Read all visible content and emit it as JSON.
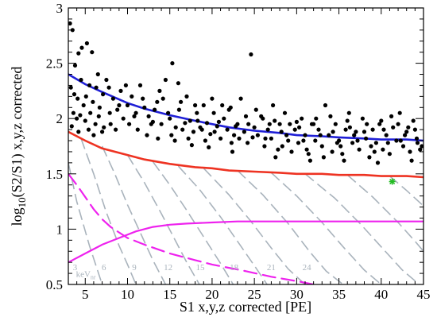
{
  "chart_data": {
    "type": "scatter",
    "title": "",
    "xlabel": "S1 x,y,z corrected [PE]",
    "ylabel": {
      "prefix": "log",
      "sub": "10",
      "rest": "(S2/S1) x,y,z corrected"
    },
    "xlim": [
      3,
      45
    ],
    "ylim": [
      0.5,
      3
    ],
    "xticks": [
      5,
      10,
      15,
      20,
      25,
      30,
      35,
      40,
      45
    ],
    "yticks": [
      0.5,
      1,
      1.5,
      2,
      2.5,
      3
    ],
    "ytick_labels": [
      "0.5",
      "1",
      "1.5",
      "2",
      "2.5",
      "3"
    ],
    "grid": false,
    "colors": {
      "points": "#000000",
      "er_band": "#1f1fd6",
      "nr_band": "#ee3322",
      "acceptance": "#ee22ee",
      "contours": "#a9b3bc",
      "candidate": "#22bb22"
    },
    "series": [
      {
        "kind": "line",
        "color_key": "er_band",
        "x": [
          3,
          5,
          7,
          10,
          12,
          15,
          18,
          20,
          22,
          25,
          28,
          30,
          33,
          35,
          38,
          40,
          43,
          45
        ],
        "y": [
          2.4,
          2.31,
          2.24,
          2.14,
          2.09,
          2.03,
          1.98,
          1.95,
          1.92,
          1.89,
          1.87,
          1.85,
          1.84,
          1.83,
          1.82,
          1.81,
          1.81,
          1.8
        ]
      },
      {
        "kind": "line",
        "color_key": "nr_band",
        "x": [
          3,
          5,
          7,
          10,
          12,
          15,
          18,
          20,
          22,
          25,
          28,
          30,
          33,
          35,
          38,
          40,
          43,
          45
        ],
        "y": [
          1.88,
          1.8,
          1.73,
          1.67,
          1.63,
          1.59,
          1.56,
          1.55,
          1.53,
          1.52,
          1.51,
          1.5,
          1.5,
          1.49,
          1.49,
          1.48,
          1.48,
          1.47
        ]
      },
      {
        "kind": "line",
        "color_key": "acceptance",
        "style": "solid",
        "x": [
          3,
          5,
          7,
          9,
          11,
          13,
          15,
          17,
          20,
          23,
          26,
          30,
          35,
          40,
          45
        ],
        "y": [
          0.7,
          0.78,
          0.86,
          0.92,
          0.98,
          1.02,
          1.04,
          1.05,
          1.06,
          1.07,
          1.07,
          1.07,
          1.07,
          1.07,
          1.07
        ]
      },
      {
        "kind": "line",
        "color_key": "acceptance",
        "style": "dashed",
        "x": [
          3,
          4,
          5,
          6,
          7,
          8,
          10,
          12,
          15,
          18,
          20,
          24,
          27,
          30,
          32
        ],
        "y": [
          1.5,
          1.4,
          1.29,
          1.18,
          1.09,
          1.02,
          0.92,
          0.86,
          0.78,
          0.72,
          0.68,
          0.62,
          0.57,
          0.53,
          0.5
        ]
      }
    ],
    "contours": {
      "label_unit": "keV",
      "label_unit_sub": "nr",
      "labels": [
        {
          "text": "3",
          "x": 3.8
        },
        {
          "text": "6",
          "x": 7.2
        },
        {
          "text": "9",
          "x": 10.8
        },
        {
          "text": "12",
          "x": 14.8
        },
        {
          "text": "15",
          "x": 18.6
        },
        {
          "text": "18",
          "x": 22.6
        },
        {
          "text": "21",
          "x": 27.0
        },
        {
          "text": "24",
          "x": 31.2
        }
      ],
      "lines": [
        {
          "x": [
            3.0,
            4.0,
            5.5,
            7.0
          ],
          "y": [
            1.6,
            1.25,
            0.85,
            0.5
          ]
        },
        {
          "x": [
            4.5,
            6.0,
            7.5,
            9.0,
            10.0,
            11.0
          ],
          "y": [
            1.82,
            1.5,
            1.15,
            0.85,
            0.68,
            0.5
          ]
        },
        {
          "x": [
            7.0,
            8.5,
            10.0,
            11.5,
            13.0,
            14.5
          ],
          "y": [
            1.75,
            1.5,
            1.22,
            0.97,
            0.72,
            0.5
          ]
        },
        {
          "x": [
            10.0,
            12.0,
            14.0,
            15.5,
            17.0,
            18.5
          ],
          "y": [
            1.67,
            1.42,
            1.14,
            0.92,
            0.7,
            0.5
          ]
        },
        {
          "x": [
            13.0,
            15.0,
            17.0,
            19.0,
            21.0,
            22.5
          ],
          "y": [
            1.61,
            1.4,
            1.17,
            0.93,
            0.69,
            0.5
          ]
        },
        {
          "x": [
            16.0,
            18.5,
            21.0,
            23.0,
            25.0,
            26.5
          ],
          "y": [
            1.57,
            1.36,
            1.11,
            0.89,
            0.67,
            0.5
          ]
        },
        {
          "x": [
            19.0,
            22.0,
            24.5,
            27.0,
            29.0,
            31.0
          ],
          "y": [
            1.55,
            1.31,
            1.08,
            0.83,
            0.64,
            0.5
          ]
        },
        {
          "x": [
            23.0,
            26.0,
            29.0,
            31.5,
            33.5,
            35.5
          ],
          "y": [
            1.53,
            1.31,
            1.05,
            0.8,
            0.62,
            0.5
          ]
        },
        {
          "x": [
            27.0,
            30.0,
            33.0,
            35.5,
            38.0,
            40.0
          ],
          "y": [
            1.51,
            1.3,
            1.06,
            0.84,
            0.63,
            0.5
          ]
        },
        {
          "x": [
            31.0,
            34.5,
            37.5,
            40.0,
            42.5,
            44.5
          ],
          "y": [
            1.5,
            1.28,
            1.05,
            0.84,
            0.63,
            0.5
          ]
        },
        {
          "x": [
            36.0,
            39.0,
            42.0,
            44.0,
            45.0
          ],
          "y": [
            1.49,
            1.29,
            1.06,
            0.89,
            0.8
          ]
        },
        {
          "x": [
            41.0,
            43.0,
            45.0
          ],
          "y": [
            1.48,
            1.35,
            1.21
          ]
        }
      ]
    },
    "candidate": {
      "x": 41.3,
      "y": 1.43,
      "marker": "star"
    },
    "points": [
      [
        3.2,
        2.86
      ],
      [
        3.5,
        2.8
      ],
      [
        3.8,
        2.48
      ],
      [
        4.2,
        2.59
      ],
      [
        4.6,
        2.64
      ],
      [
        5.2,
        2.68
      ],
      [
        5.8,
        2.6
      ],
      [
        3.3,
        2.28
      ],
      [
        3.7,
        2.22
      ],
      [
        4.1,
        2.18
      ],
      [
        4.5,
        2.35
      ],
      [
        4.8,
        2.12
      ],
      [
        5.1,
        2.2
      ],
      [
        5.5,
        2.3
      ],
      [
        5.9,
        2.15
      ],
      [
        6.3,
        2.28
      ],
      [
        6.7,
        2.1
      ],
      [
        7.1,
        2.22
      ],
      [
        7.5,
        2.35
      ],
      [
        7.9,
        2.05
      ],
      [
        8.3,
        2.18
      ],
      [
        8.8,
        2.08
      ],
      [
        9.2,
        2.25
      ],
      [
        3.6,
        2.05
      ],
      [
        4.0,
        2.0
      ],
      [
        4.4,
        2.03
      ],
      [
        5.0,
        1.98
      ],
      [
        5.6,
        2.05
      ],
      [
        6.2,
        1.95
      ],
      [
        6.6,
        2.02
      ],
      [
        7.2,
        1.92
      ],
      [
        3.4,
        1.93
      ],
      [
        4.2,
        1.88
      ],
      [
        5.4,
        1.9
      ],
      [
        6.0,
        1.85
      ],
      [
        7.0,
        1.88
      ],
      [
        8.0,
        1.95
      ],
      [
        8.6,
        1.9
      ],
      [
        9.5,
        2.0
      ],
      [
        10.0,
        2.12
      ],
      [
        10.5,
        2.2
      ],
      [
        11.0,
        2.05
      ],
      [
        11.5,
        2.3
      ],
      [
        12.0,
        2.1
      ],
      [
        12.5,
        2.02
      ],
      [
        13.0,
        1.97
      ],
      [
        13.5,
        2.15
      ],
      [
        14.0,
        1.95
      ],
      [
        14.5,
        2.35
      ],
      [
        15.0,
        2.0
      ],
      [
        15.3,
        2.5
      ],
      [
        15.7,
        1.92
      ],
      [
        16.1,
        2.08
      ],
      [
        16.5,
        1.9
      ],
      [
        17.0,
        2.2
      ],
      [
        17.4,
        1.98
      ],
      [
        17.8,
        1.88
      ],
      [
        18.2,
        2.05
      ],
      [
        18.6,
        1.92
      ],
      [
        19.0,
        2.12
      ],
      [
        19.4,
        1.96
      ],
      [
        19.8,
        1.86
      ],
      [
        20.2,
        2.05
      ],
      [
        20.6,
        1.93
      ],
      [
        21.0,
        1.82
      ],
      [
        21.4,
        2.0
      ],
      [
        21.8,
        1.9
      ],
      [
        22.2,
        2.1
      ],
      [
        22.6,
        1.85
      ],
      [
        23.0,
        1.95
      ],
      [
        23.4,
        2.18
      ],
      [
        23.8,
        1.88
      ],
      [
        24.2,
        1.78
      ],
      [
        24.6,
        2.58
      ],
      [
        25.0,
        1.92
      ],
      [
        25.4,
        1.85
      ],
      [
        25.8,
        2.02
      ],
      [
        26.2,
        1.75
      ],
      [
        26.6,
        1.9
      ],
      [
        27.0,
        1.82
      ],
      [
        27.4,
        1.98
      ],
      [
        27.8,
        1.72
      ],
      [
        28.2,
        1.88
      ],
      [
        28.6,
        2.05
      ],
      [
        29.0,
        1.8
      ],
      [
        29.4,
        1.7
      ],
      [
        29.8,
        1.9
      ],
      [
        30.2,
        1.78
      ],
      [
        30.6,
        2.0
      ],
      [
        31.0,
        1.85
      ],
      [
        31.4,
        1.68
      ],
      [
        31.8,
        1.95
      ],
      [
        32.2,
        1.8
      ],
      [
        32.6,
        1.9
      ],
      [
        33.0,
        1.75
      ],
      [
        33.4,
        2.12
      ],
      [
        33.8,
        1.85
      ],
      [
        34.2,
        1.7
      ],
      [
        34.6,
        1.95
      ],
      [
        35.0,
        1.8
      ],
      [
        35.4,
        1.68
      ],
      [
        35.8,
        1.9
      ],
      [
        36.2,
        2.05
      ],
      [
        36.6,
        1.78
      ],
      [
        37.0,
        1.88
      ],
      [
        37.4,
        1.72
      ],
      [
        37.8,
        2.0
      ],
      [
        38.2,
        1.82
      ],
      [
        38.6,
        1.65
      ],
      [
        39.0,
        1.9
      ],
      [
        39.4,
        1.78
      ],
      [
        39.8,
        1.95
      ],
      [
        40.2,
        1.72
      ],
      [
        40.6,
        1.85
      ],
      [
        41.0,
        1.68
      ],
      [
        41.4,
        1.92
      ],
      [
        41.8,
        1.8
      ],
      [
        42.2,
        2.05
      ],
      [
        42.6,
        1.75
      ],
      [
        43.0,
        1.88
      ],
      [
        43.4,
        1.7
      ],
      [
        43.8,
        1.98
      ],
      [
        44.2,
        1.82
      ],
      [
        44.6,
        1.72
      ],
      [
        10.2,
        1.95
      ],
      [
        11.2,
        1.9
      ],
      [
        12.3,
        1.85
      ],
      [
        13.2,
        2.08
      ],
      [
        14.2,
        2.18
      ],
      [
        15.2,
        1.85
      ],
      [
        16.3,
        2.15
      ],
      [
        17.2,
        1.82
      ],
      [
        18.3,
        1.98
      ],
      [
        19.2,
        1.8
      ],
      [
        20.3,
        1.88
      ],
      [
        21.2,
        2.12
      ],
      [
        22.3,
        1.78
      ],
      [
        23.2,
        1.82
      ],
      [
        24.3,
        1.95
      ],
      [
        25.2,
        2.08
      ],
      [
        26.3,
        1.82
      ],
      [
        27.2,
        2.12
      ],
      [
        28.3,
        1.75
      ],
      [
        29.2,
        1.95
      ],
      [
        30.3,
        1.92
      ],
      [
        31.2,
        1.72
      ],
      [
        32.3,
        2.0
      ],
      [
        33.2,
        1.65
      ],
      [
        34.3,
        1.88
      ],
      [
        35.2,
        1.75
      ],
      [
        36.3,
        1.92
      ],
      [
        37.2,
        1.8
      ],
      [
        38.3,
        1.95
      ],
      [
        39.2,
        1.7
      ],
      [
        40.3,
        1.9
      ],
      [
        41.2,
        2.02
      ],
      [
        42.3,
        1.8
      ],
      [
        43.2,
        1.92
      ],
      [
        44.3,
        1.78
      ],
      [
        10.8,
        2.02
      ],
      [
        12.8,
        1.95
      ],
      [
        14.8,
        2.05
      ],
      [
        16.8,
        1.96
      ],
      [
        18.8,
        1.9
      ],
      [
        20.8,
        1.97
      ],
      [
        22.8,
        1.93
      ],
      [
        24.8,
        1.83
      ],
      [
        26.8,
        1.95
      ],
      [
        28.8,
        1.85
      ],
      [
        30.8,
        1.8
      ],
      [
        32.8,
        1.85
      ],
      [
        34.8,
        1.78
      ],
      [
        36.8,
        1.85
      ],
      [
        38.8,
        1.75
      ],
      [
        40.8,
        1.78
      ],
      [
        42.8,
        1.85
      ],
      [
        44.8,
        1.75
      ],
      [
        6.5,
        2.4
      ],
      [
        7.8,
        2.28
      ],
      [
        9.0,
        2.12
      ],
      [
        9.8,
        2.3
      ],
      [
        11.8,
        2.18
      ],
      [
        13.8,
        2.25
      ],
      [
        16.0,
        2.32
      ],
      [
        18.0,
        2.12
      ],
      [
        20.0,
        2.18
      ],
      [
        22.0,
        2.08
      ],
      [
        24.0,
        2.02
      ],
      [
        26.0,
        2.0
      ],
      [
        28.0,
        1.95
      ],
      [
        30.0,
        1.97
      ],
      [
        32.0,
        1.95
      ],
      [
        34.0,
        2.02
      ],
      [
        36.0,
        1.98
      ],
      [
        38.0,
        1.88
      ],
      [
        40.0,
        1.98
      ],
      [
        42.0,
        1.95
      ],
      [
        44.0,
        1.9
      ],
      [
        27.5,
        1.65
      ],
      [
        31.6,
        1.62
      ],
      [
        35.6,
        1.62
      ],
      [
        39.6,
        1.6
      ],
      [
        43.6,
        1.62
      ],
      [
        22.4,
        1.7
      ],
      [
        19.6,
        1.74
      ],
      [
        17.6,
        1.76
      ],
      [
        15.6,
        1.8
      ],
      [
        13.6,
        1.82
      ]
    ]
  }
}
